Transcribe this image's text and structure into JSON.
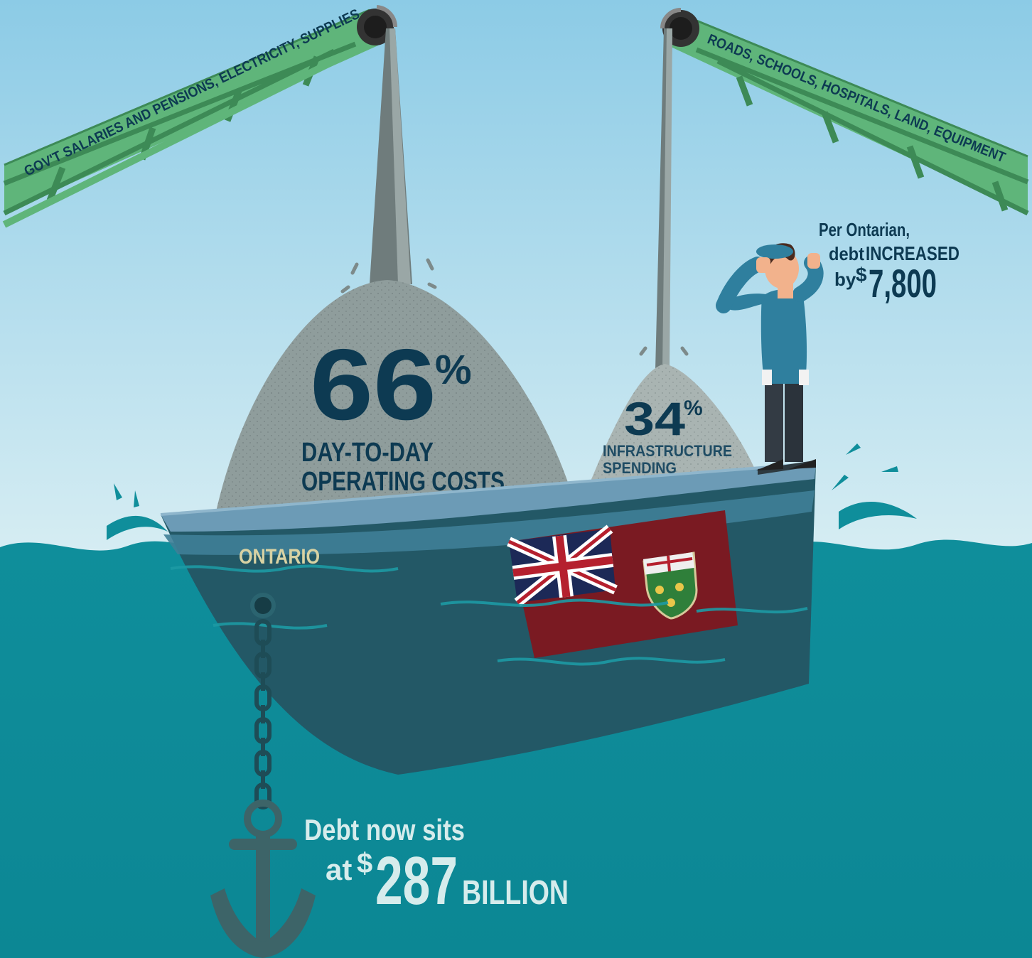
{
  "conveyor_left": {
    "label": "GOV'T SALARIES AND PENSIONS, ELECTRICITY, SUPPLIES"
  },
  "conveyor_right": {
    "label": "ROADS, SCHOOLS, HOSPITALS, LAND, EQUIPMENT"
  },
  "operating": {
    "value": "66",
    "percent": "%",
    "line1": "DAY-TO-DAY",
    "line2": "OPERATING COSTS"
  },
  "infrastructure": {
    "value": "34",
    "percent": "%",
    "line1": "INFRASTRUCTURE",
    "line2": "SPENDING"
  },
  "per_person": {
    "line1": "Per Ontarian,",
    "line2_prefix": "debt ",
    "line2_emph": "INCREASED",
    "line3_prefix": "by ",
    "currency": "$",
    "amount": "7,800"
  },
  "ship": {
    "name": "ONTARIO"
  },
  "debt": {
    "line1": "Debt now sits",
    "line2_prefix": "at ",
    "currency": "$",
    "amount": "287",
    "unit": "BILLION"
  },
  "colors": {
    "sky_top": "#8ccbe6",
    "sea": "#0e8f9c",
    "navy_text": "#0d3a52",
    "conveyor_green": "#5fb57a",
    "hull": "#235866",
    "flag_red": "#7a1a22"
  },
  "icons": [
    "conveyor-icon",
    "sand-pile-icon",
    "ship-icon",
    "ontario-flag-icon",
    "man-icon",
    "anchor-icon",
    "chain-icon"
  ]
}
